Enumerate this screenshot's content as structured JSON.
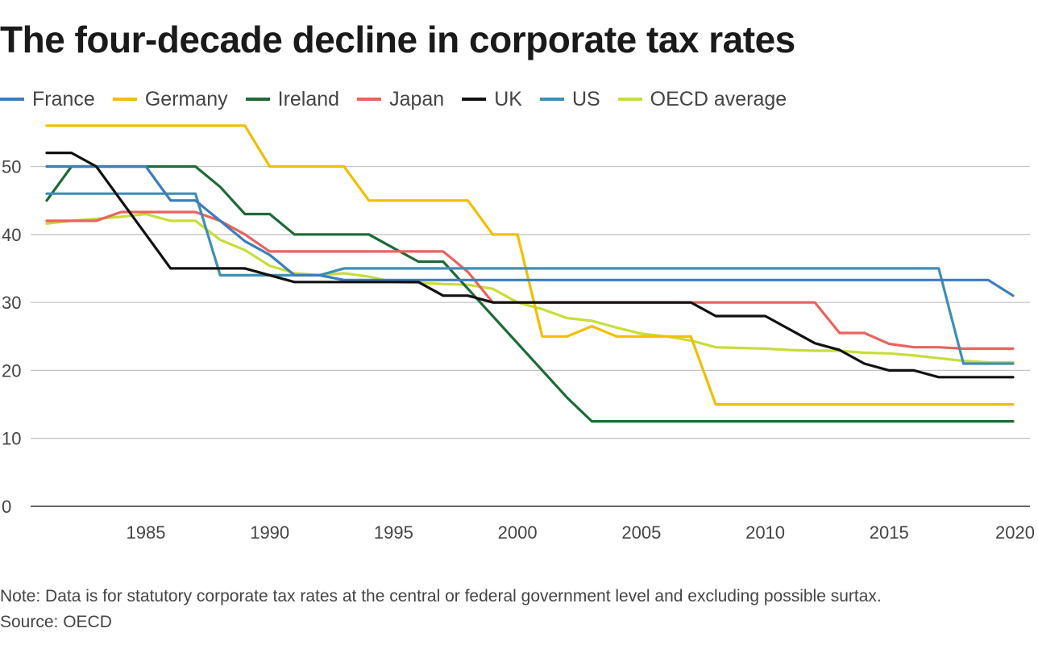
{
  "chart_data": {
    "type": "line",
    "title": "The four-decade decline in corporate tax rates",
    "xlabel": "",
    "ylabel": "",
    "xlim": [
      1981,
      2020
    ],
    "ylim": [
      0,
      60
    ],
    "x_ticks": [
      1985,
      1990,
      1995,
      2000,
      2005,
      2010,
      2015,
      2020
    ],
    "y_ticks": [
      0,
      10,
      20,
      30,
      40,
      50
    ],
    "grid": "horizontal",
    "legend_position": "top",
    "x": [
      1981,
      1982,
      1983,
      1984,
      1985,
      1986,
      1987,
      1988,
      1989,
      1990,
      1991,
      1992,
      1993,
      1994,
      1995,
      1996,
      1997,
      1998,
      1999,
      2000,
      2001,
      2002,
      2003,
      2004,
      2005,
      2006,
      2007,
      2008,
      2009,
      2010,
      2011,
      2012,
      2013,
      2014,
      2015,
      2016,
      2017,
      2018,
      2019,
      2020
    ],
    "series": [
      {
        "name": "France",
        "color": "#3b7dbd",
        "values": [
          50,
          50,
          50,
          50,
          50,
          45,
          45,
          42,
          39,
          37,
          34,
          34,
          33.3,
          33.3,
          33.3,
          33.3,
          33.3,
          33.3,
          33.3,
          33.3,
          33.3,
          33.3,
          33.3,
          33.3,
          33.3,
          33.3,
          33.3,
          33.3,
          33.3,
          33.3,
          33.3,
          33.3,
          33.3,
          33.3,
          33.3,
          33.3,
          33.3,
          33.3,
          33.3,
          31
        ]
      },
      {
        "name": "Germany",
        "color": "#f2be00",
        "values": [
          56,
          56,
          56,
          56,
          56,
          56,
          56,
          56,
          56,
          50,
          50,
          50,
          50,
          45,
          45,
          45,
          45,
          45,
          40,
          40,
          25,
          25,
          26.5,
          25,
          25,
          25,
          25,
          15,
          15,
          15,
          15,
          15,
          15,
          15,
          15,
          15,
          15,
          15,
          15,
          15
        ]
      },
      {
        "name": "Ireland",
        "color": "#1d6b35",
        "values": [
          45,
          50,
          50,
          50,
          50,
          50,
          50,
          47,
          43,
          43,
          40,
          40,
          40,
          40,
          38,
          36,
          36,
          32,
          28,
          24,
          20,
          16,
          12.5,
          12.5,
          12.5,
          12.5,
          12.5,
          12.5,
          12.5,
          12.5,
          12.5,
          12.5,
          12.5,
          12.5,
          12.5,
          12.5,
          12.5,
          12.5,
          12.5,
          12.5
        ]
      },
      {
        "name": "Japan",
        "color": "#e8645f",
        "values": [
          42,
          42,
          42,
          43.3,
          43.3,
          43.3,
          43.3,
          42,
          40,
          37.5,
          37.5,
          37.5,
          37.5,
          37.5,
          37.5,
          37.5,
          37.5,
          34.5,
          30,
          30,
          30,
          30,
          30,
          30,
          30,
          30,
          30,
          30,
          30,
          30,
          30,
          30,
          25.5,
          25.5,
          23.9,
          23.4,
          23.4,
          23.2,
          23.2,
          23.2
        ]
      },
      {
        "name": "UK",
        "color": "#111111",
        "values": [
          52,
          52,
          50,
          45,
          40,
          35,
          35,
          35,
          35,
          34,
          33,
          33,
          33,
          33,
          33,
          33,
          31,
          31,
          30,
          30,
          30,
          30,
          30,
          30,
          30,
          30,
          30,
          28,
          28,
          28,
          26,
          24,
          23,
          21,
          20,
          20,
          19,
          19,
          19,
          19
        ]
      },
      {
        "name": "US",
        "color": "#3d8fb5",
        "values": [
          46,
          46,
          46,
          46,
          46,
          46,
          46,
          34,
          34,
          34,
          34,
          34,
          35,
          35,
          35,
          35,
          35,
          35,
          35,
          35,
          35,
          35,
          35,
          35,
          35,
          35,
          35,
          35,
          35,
          35,
          35,
          35,
          35,
          35,
          35,
          35,
          35,
          21,
          21,
          21
        ]
      },
      {
        "name": "OECD average",
        "color": "#c7dd3a",
        "values": [
          41.6,
          42,
          42.3,
          42.6,
          43,
          42,
          42,
          39.2,
          37.7,
          35.4,
          34.3,
          34,
          34.3,
          33.8,
          33,
          32.9,
          32.7,
          32.6,
          32,
          30,
          29,
          27.7,
          27.3,
          26.3,
          25.4,
          25,
          24.4,
          23.4,
          23.3,
          23.2,
          23,
          22.9,
          22.9,
          22.6,
          22.5,
          22.2,
          21.8,
          21.4,
          21.2,
          21.2
        ]
      }
    ]
  },
  "footer": {
    "note": "Note: Data is for statutory corporate tax rates at the central or federal government level and excluding possible surtax.",
    "source": "Source: OECD"
  }
}
